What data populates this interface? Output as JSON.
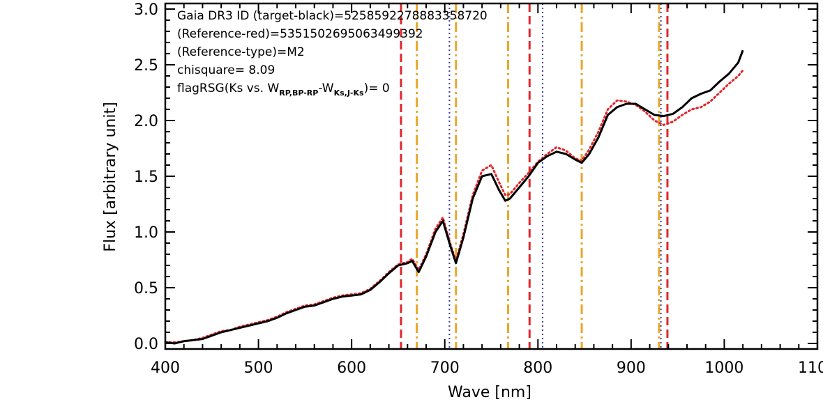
{
  "chart_data": {
    "type": "line",
    "xlabel": "Wave [nm]",
    "ylabel": "Flux [arbitrary unit]",
    "xlim": [
      400,
      1100
    ],
    "ylim": [
      -0.05,
      3.05
    ],
    "x_ticks": [
      400,
      500,
      600,
      700,
      800,
      900,
      1000,
      1100
    ],
    "x_tick_labels": [
      "400",
      "500",
      "600",
      "700",
      "800",
      "900",
      "1000",
      "1100"
    ],
    "y_ticks": [
      0.0,
      0.5,
      1.0,
      1.5,
      2.0,
      2.5,
      3.0
    ],
    "y_tick_labels": [
      "0.0",
      "0.5",
      "1.0",
      "1.5",
      "2.0",
      "2.5",
      "3.0"
    ],
    "annotations": [
      "Gaia DR3 ID (target-black)=5258592278883358720",
      "(Reference-red)=5351502695063499392",
      "(Reference-type)=M2",
      "chisquare= 8.09"
    ],
    "flag_annotation": {
      "prefix": "flagRSG(Ks vs. W",
      "sub1": "RP,BP-RP",
      "mid": "-W",
      "sub2": "Ks,J-Ks",
      "suffix": ")= 0"
    },
    "series": [
      {
        "color": "#000000",
        "style": "solid",
        "x": [
          400,
          410,
          420,
          430,
          440,
          450,
          460,
          470,
          480,
          490,
          500,
          510,
          520,
          530,
          540,
          550,
          560,
          570,
          580,
          590,
          600,
          610,
          620,
          630,
          640,
          650,
          660,
          665,
          672,
          680,
          690,
          698,
          705,
          712,
          720,
          730,
          740,
          750,
          758,
          765,
          770,
          780,
          790,
          800,
          810,
          820,
          830,
          840,
          847,
          855,
          865,
          875,
          885,
          895,
          905,
          915,
          925,
          935,
          945,
          955,
          965,
          975,
          985,
          995,
          1005,
          1015,
          1020
        ],
        "values": [
          0.01,
          0.0,
          0.02,
          0.03,
          0.04,
          0.07,
          0.1,
          0.12,
          0.14,
          0.16,
          0.18,
          0.2,
          0.23,
          0.27,
          0.3,
          0.33,
          0.34,
          0.37,
          0.4,
          0.42,
          0.43,
          0.44,
          0.48,
          0.55,
          0.63,
          0.7,
          0.72,
          0.74,
          0.64,
          0.78,
          1.0,
          1.1,
          0.9,
          0.72,
          0.95,
          1.3,
          1.5,
          1.52,
          1.38,
          1.28,
          1.3,
          1.4,
          1.5,
          1.62,
          1.68,
          1.72,
          1.7,
          1.65,
          1.62,
          1.7,
          1.85,
          2.05,
          2.12,
          2.15,
          2.15,
          2.1,
          2.05,
          2.04,
          2.06,
          2.12,
          2.2,
          2.24,
          2.27,
          2.35,
          2.42,
          2.52,
          2.63
        ]
      },
      {
        "color": "#e0272b",
        "style": "dotted",
        "x": [
          400,
          410,
          420,
          430,
          440,
          450,
          460,
          470,
          480,
          490,
          500,
          510,
          520,
          530,
          540,
          550,
          560,
          570,
          580,
          590,
          600,
          610,
          620,
          630,
          640,
          650,
          660,
          665,
          672,
          680,
          690,
          698,
          705,
          712,
          720,
          730,
          740,
          750,
          758,
          765,
          770,
          780,
          790,
          800,
          810,
          820,
          830,
          840,
          847,
          855,
          865,
          875,
          885,
          895,
          905,
          915,
          925,
          935,
          945,
          955,
          965,
          975,
          985,
          995,
          1005,
          1015,
          1020
        ],
        "values": [
          0.01,
          0.01,
          0.02,
          0.03,
          0.05,
          0.08,
          0.11,
          0.12,
          0.15,
          0.17,
          0.19,
          0.21,
          0.24,
          0.28,
          0.31,
          0.34,
          0.35,
          0.38,
          0.41,
          0.43,
          0.44,
          0.45,
          0.49,
          0.56,
          0.64,
          0.71,
          0.73,
          0.76,
          0.66,
          0.8,
          1.03,
          1.13,
          0.92,
          0.74,
          0.98,
          1.33,
          1.55,
          1.6,
          1.45,
          1.33,
          1.34,
          1.44,
          1.53,
          1.63,
          1.7,
          1.76,
          1.73,
          1.66,
          1.64,
          1.74,
          1.9,
          2.1,
          2.18,
          2.17,
          2.14,
          2.08,
          2.0,
          1.96,
          1.99,
          2.05,
          2.1,
          2.12,
          2.17,
          2.25,
          2.33,
          2.4,
          2.45
        ]
      }
    ],
    "vlines": [
      {
        "x": 653,
        "color": "#e0272b",
        "style": "dashed"
      },
      {
        "x": 791,
        "color": "#e0272b",
        "style": "dashed"
      },
      {
        "x": 939,
        "color": "#e0272b",
        "style": "dashed"
      },
      {
        "x": 670,
        "color": "#e8a72a",
        "style": "dashdot"
      },
      {
        "x": 712,
        "color": "#e8a72a",
        "style": "dashdot"
      },
      {
        "x": 768,
        "color": "#e8a72a",
        "style": "dashdot"
      },
      {
        "x": 847,
        "color": "#e8a72a",
        "style": "dashdot"
      },
      {
        "x": 930,
        "color": "#e8a72a",
        "style": "dashdot"
      },
      {
        "x": 705,
        "color": "#3c3c9a",
        "style": "dotted"
      },
      {
        "x": 805,
        "color": "#3c3c9a",
        "style": "dotted"
      },
      {
        "x": 932,
        "color": "#3c3c9a",
        "style": "dotted"
      }
    ],
    "grid": false
  }
}
